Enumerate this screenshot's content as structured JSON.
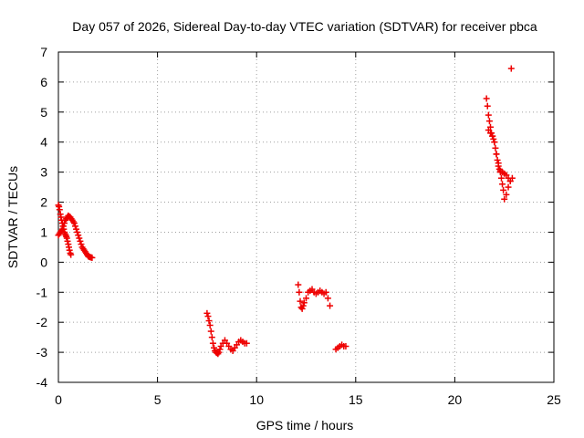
{
  "chart_data": {
    "type": "scatter",
    "title": "Day 057 of 2026, Sidereal Day-to-day VTEC variation (SDTVAR) for receiver pbca",
    "xlabel": "GPS time / hours",
    "ylabel": "SDTVAR / TECUs",
    "xlim": [
      0,
      25
    ],
    "ylim": [
      -4,
      7
    ],
    "x_ticks": [
      0,
      5,
      10,
      15,
      20,
      25
    ],
    "y_ticks": [
      -4,
      -3,
      -2,
      -1,
      0,
      1,
      2,
      3,
      4,
      5,
      6,
      7
    ],
    "grid": true,
    "marker": "+",
    "color": "#ee0000",
    "series": [
      {
        "name": "SDTVAR",
        "x": [
          0.0,
          0.03,
          0.06,
          0.1,
          0.13,
          0.16,
          0.2,
          0.23,
          0.27,
          0.3,
          0.33,
          0.37,
          0.4,
          0.43,
          0.46,
          0.5,
          0.53,
          0.56,
          0.6,
          0.63,
          0.0,
          0.05,
          0.1,
          0.15,
          0.2,
          0.25,
          0.3,
          0.35,
          0.4,
          0.45,
          0.5,
          0.55,
          0.6,
          0.65,
          0.7,
          0.75,
          0.8,
          0.85,
          0.9,
          0.95,
          1.0,
          1.05,
          1.1,
          1.15,
          1.2,
          1.25,
          1.3,
          1.35,
          1.4,
          1.45,
          1.5,
          1.55,
          1.6,
          1.65,
          1.7,
          7.5,
          7.55,
          7.6,
          7.65,
          7.7,
          7.75,
          7.8,
          7.85,
          7.9,
          7.95,
          8.0,
          8.05,
          8.1,
          8.15,
          8.2,
          8.3,
          8.4,
          8.5,
          8.6,
          8.7,
          8.8,
          8.9,
          9.0,
          9.1,
          9.2,
          9.3,
          9.4,
          9.5,
          12.1,
          12.15,
          12.2,
          12.25,
          12.3,
          12.35,
          12.4,
          12.5,
          12.6,
          12.7,
          12.8,
          12.9,
          13.0,
          13.1,
          13.2,
          13.3,
          13.4,
          13.5,
          13.6,
          13.7,
          14.0,
          14.1,
          14.2,
          14.3,
          14.4,
          14.5,
          21.6,
          21.65,
          21.7,
          21.75,
          21.8,
          21.85,
          21.9,
          21.95,
          22.0,
          22.05,
          22.1,
          22.15,
          22.2,
          22.25,
          22.3,
          22.35,
          22.4,
          22.45,
          22.5,
          22.6,
          22.7,
          22.8,
          22.9,
          21.7,
          21.8,
          21.9,
          22.0,
          22.1,
          22.2,
          22.3,
          22.4,
          22.5,
          22.6,
          22.7,
          22.8,
          22.85
        ],
        "y": [
          1.9,
          1.85,
          1.75,
          1.6,
          1.5,
          1.4,
          1.3,
          1.2,
          1.1,
          1.0,
          0.95,
          0.9,
          0.85,
          0.8,
          0.7,
          0.6,
          0.5,
          0.4,
          0.3,
          0.25,
          0.9,
          0.95,
          1.0,
          1.05,
          1.1,
          1.2,
          1.3,
          1.4,
          1.45,
          1.5,
          1.55,
          1.52,
          1.5,
          1.45,
          1.4,
          1.35,
          1.3,
          1.2,
          1.1,
          1.0,
          0.9,
          0.8,
          0.7,
          0.6,
          0.5,
          0.45,
          0.4,
          0.35,
          0.3,
          0.25,
          0.2,
          0.18,
          0.17,
          0.16,
          0.15,
          -1.7,
          -1.8,
          -1.95,
          -2.1,
          -2.3,
          -2.5,
          -2.7,
          -2.85,
          -2.95,
          -3.0,
          -3.02,
          -3.05,
          -3.0,
          -2.9,
          -2.8,
          -2.7,
          -2.6,
          -2.7,
          -2.8,
          -2.9,
          -2.95,
          -2.85,
          -2.75,
          -2.65,
          -2.6,
          -2.65,
          -2.7,
          -2.7,
          -0.75,
          -1.0,
          -1.3,
          -1.5,
          -1.55,
          -1.45,
          -1.35,
          -1.2,
          -1.0,
          -0.95,
          -0.9,
          -1.0,
          -1.05,
          -1.0,
          -0.95,
          -1.0,
          -1.05,
          -1.0,
          -1.2,
          -1.45,
          -2.9,
          -2.85,
          -2.8,
          -2.75,
          -2.8,
          -2.8,
          5.45,
          5.2,
          4.9,
          4.7,
          4.5,
          4.3,
          4.2,
          4.1,
          4.0,
          3.8,
          3.6,
          3.4,
          3.3,
          3.1,
          3.0,
          2.8,
          2.6,
          2.4,
          2.1,
          2.25,
          2.5,
          2.7,
          2.8,
          4.4,
          4.3,
          4.2,
          4.0,
          3.6,
          3.2,
          3.05,
          3.0,
          2.95,
          2.9,
          2.8,
          2.7,
          6.45
        ]
      }
    ]
  }
}
